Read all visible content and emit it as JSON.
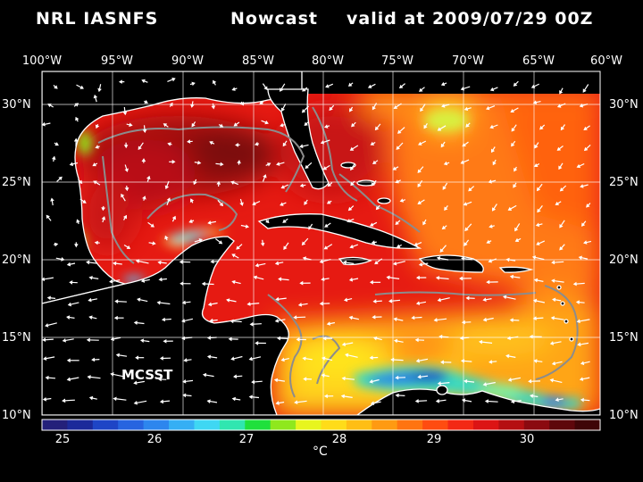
{
  "header": {
    "model": "NRL IASNFS",
    "product": "Nowcast",
    "valid": "valid at 2009/07/29 00Z"
  },
  "map": {
    "lon_labels": [
      "100°W",
      "95°W",
      "90°W",
      "85°W",
      "80°W",
      "75°W",
      "70°W",
      "65°W",
      "60°W"
    ],
    "lat_labels": [
      "30°N",
      "25°N",
      "20°N",
      "15°N",
      "10°N"
    ],
    "source_label": "MCSST"
  },
  "colorbar": {
    "tick_labels": [
      "25",
      "26",
      "27",
      "28",
      "29",
      "30"
    ],
    "unit": "°C",
    "colors": [
      "#24207a",
      "#1c2a9a",
      "#1e45c6",
      "#2764e0",
      "#2d86ee",
      "#35aff4",
      "#3fd7f3",
      "#30e6b0",
      "#1fe03c",
      "#8fe81d",
      "#e8f51e",
      "#ffdc19",
      "#ffbe14",
      "#ff9a12",
      "#ff7410",
      "#ff4c10",
      "#f32914",
      "#dc1414",
      "#b50f12",
      "#8b0a10",
      "#5e070b",
      "#3f0507"
    ]
  },
  "colors": {
    "background": "#000000",
    "land": "#000000",
    "coast": "#ffffff",
    "grid": "#ffffff",
    "isobath": "#8c8c8c"
  }
}
